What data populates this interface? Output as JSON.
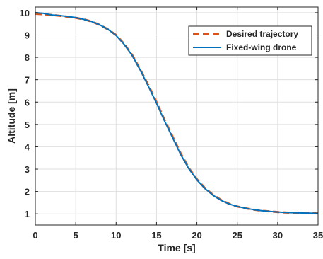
{
  "chart_data": {
    "type": "line",
    "xlabel": "Time [s]",
    "ylabel": "Altitude [m]",
    "xlim": [
      0,
      35
    ],
    "ylim": [
      0.5,
      10.25
    ],
    "xticks": [
      0,
      5,
      10,
      15,
      20,
      25,
      30,
      35
    ],
    "yticks": [
      1,
      2,
      3,
      4,
      5,
      6,
      7,
      8,
      9,
      10
    ],
    "grid": true,
    "legend_position": "top-right",
    "series": [
      {
        "name": "Desired trajectory",
        "style": "dashed",
        "color": "#D95319",
        "x": [
          0,
          1,
          2,
          3,
          4,
          5,
          6,
          7,
          8,
          9,
          10,
          11,
          12,
          13,
          14,
          15,
          16,
          17,
          18,
          19,
          20,
          21,
          22,
          23,
          24,
          25,
          26,
          27,
          28,
          29,
          30,
          31,
          32,
          33,
          34,
          35
        ],
        "y": [
          9.95,
          9.93,
          9.9,
          9.86,
          9.82,
          9.77,
          9.7,
          9.6,
          9.45,
          9.25,
          9.0,
          8.6,
          8.1,
          7.45,
          6.75,
          6.0,
          5.2,
          4.45,
          3.7,
          3.05,
          2.55,
          2.15,
          1.85,
          1.62,
          1.45,
          1.33,
          1.25,
          1.19,
          1.14,
          1.11,
          1.08,
          1.06,
          1.05,
          1.04,
          1.03,
          1.02
        ]
      },
      {
        "name": "Fixed-wing drone",
        "style": "solid",
        "color": "#0072BD",
        "x": [
          0,
          1,
          2,
          3,
          4,
          5,
          6,
          7,
          8,
          9,
          10,
          11,
          12,
          13,
          14,
          15,
          16,
          17,
          18,
          19,
          20,
          21,
          22,
          23,
          24,
          25,
          26,
          27,
          28,
          29,
          30,
          31,
          32,
          33,
          34,
          35
        ],
        "y": [
          10.0,
          9.97,
          9.9,
          9.87,
          9.83,
          9.78,
          9.7,
          9.6,
          9.45,
          9.25,
          8.98,
          8.58,
          8.08,
          7.42,
          6.7,
          5.95,
          5.15,
          4.4,
          3.65,
          3.02,
          2.52,
          2.13,
          1.83,
          1.6,
          1.44,
          1.33,
          1.25,
          1.19,
          1.14,
          1.11,
          1.08,
          1.06,
          1.05,
          1.04,
          1.03,
          1.02
        ]
      }
    ]
  }
}
